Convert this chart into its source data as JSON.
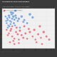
{
  "title": "US Election 2020 Mini-Render",
  "subtitle": "Tracking Conversations in the Public Online Sphere",
  "legend_labels": [
    "Donald Trump",
    "Joe Biden"
  ],
  "legend_colors": [
    "#e05565",
    "#5b8fd4"
  ],
  "header_color": "#3a3a3a",
  "plot_bg": "#f0f0f0",
  "footer_color": "#d8d8d8",
  "blue_points": [
    [
      0.1,
      0.72
    ],
    [
      0.13,
      0.78
    ],
    [
      0.16,
      0.68
    ],
    [
      0.12,
      0.82
    ],
    [
      0.18,
      0.75
    ],
    [
      0.08,
      0.65
    ],
    [
      0.14,
      0.7
    ],
    [
      0.2,
      0.8
    ],
    [
      0.11,
      0.6
    ],
    [
      0.17,
      0.85
    ],
    [
      0.22,
      0.73
    ],
    [
      0.09,
      0.76
    ],
    [
      0.15,
      0.63
    ],
    [
      0.19,
      0.88
    ],
    [
      0.25,
      0.77
    ],
    [
      0.07,
      0.7
    ],
    [
      0.21,
      0.65
    ],
    [
      0.16,
      0.9
    ],
    [
      0.24,
      0.82
    ],
    [
      0.13,
      0.58
    ],
    [
      0.28,
      0.7
    ],
    [
      0.23,
      0.6
    ],
    [
      0.3,
      0.75
    ],
    [
      0.1,
      0.55
    ],
    [
      0.35,
      0.8
    ],
    [
      0.06,
      0.8
    ],
    [
      0.4,
      0.72
    ],
    [
      0.5,
      0.85
    ],
    [
      0.55,
      0.78
    ],
    [
      0.45,
      0.65
    ],
    [
      0.32,
      0.55
    ],
    [
      0.38,
      0.68
    ]
  ],
  "red_points": [
    [
      0.12,
      0.42
    ],
    [
      0.18,
      0.35
    ],
    [
      0.15,
      0.48
    ],
    [
      0.22,
      0.3
    ],
    [
      0.1,
      0.38
    ],
    [
      0.25,
      0.45
    ],
    [
      0.2,
      0.25
    ],
    [
      0.28,
      0.4
    ],
    [
      0.08,
      0.5
    ],
    [
      0.3,
      0.28
    ],
    [
      0.16,
      0.52
    ],
    [
      0.35,
      0.38
    ],
    [
      0.14,
      0.22
    ],
    [
      0.32,
      0.48
    ],
    [
      0.38,
      0.32
    ],
    [
      0.26,
      0.55
    ],
    [
      0.42,
      0.42
    ],
    [
      0.18,
      0.58
    ],
    [
      0.45,
      0.3
    ],
    [
      0.22,
      0.18
    ],
    [
      0.5,
      0.45
    ],
    [
      0.4,
      0.58
    ],
    [
      0.55,
      0.35
    ],
    [
      0.3,
      0.2
    ],
    [
      0.6,
      0.28
    ],
    [
      0.48,
      0.52
    ],
    [
      0.65,
      0.4
    ],
    [
      0.58,
      0.5
    ],
    [
      0.7,
      0.32
    ],
    [
      0.62,
      0.22
    ],
    [
      0.75,
      0.45
    ],
    [
      0.68,
      0.58
    ],
    [
      0.8,
      0.35
    ],
    [
      0.72,
      0.18
    ],
    [
      0.85,
      0.28
    ]
  ],
  "blue_sizes": [
    4,
    5,
    4,
    6,
    5,
    4,
    4,
    7,
    4,
    6,
    5,
    4,
    4,
    7,
    5,
    4,
    5,
    8,
    6,
    4,
    5,
    4,
    6,
    4,
    7,
    4,
    5,
    8,
    6,
    5,
    4,
    5
  ],
  "red_sizes": [
    4,
    4,
    5,
    4,
    4,
    5,
    4,
    5,
    4,
    4,
    5,
    5,
    4,
    6,
    5,
    5,
    5,
    4,
    4,
    4,
    6,
    5,
    4,
    4,
    4,
    5,
    5,
    6,
    4,
    4,
    7,
    6,
    5,
    4,
    5
  ],
  "xlim": [
    0.0,
    0.95
  ],
  "ylim": [
    0.08,
    0.98
  ],
  "grid_color": "#e0e0e0",
  "point_alpha": 0.75,
  "point_edge_color": "white",
  "point_edge_width": 0.2
}
